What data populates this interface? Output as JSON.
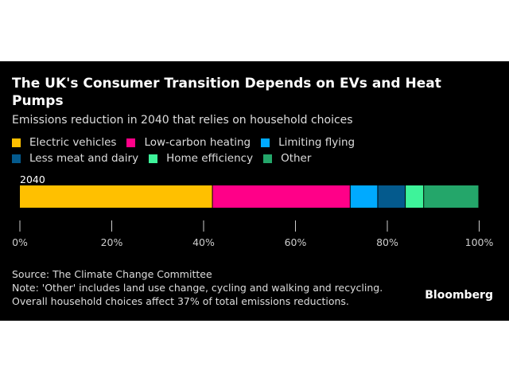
{
  "title": "The UK's Consumer Transition Depends on EVs and Heat Pumps",
  "subtitle": "Emissions reduction in 2040 that relies on household choices",
  "source": "Source: The Climate Change Committee",
  "note": "Note: 'Other' includes land use change, cycling and walking and recycling.",
  "note2": "Overall household choices affect 37% of total emissions reductions.",
  "brand": "Bloomberg",
  "chart_data": {
    "type": "bar",
    "orientation": "horizontal-stacked",
    "categories": [
      "2040"
    ],
    "series": [
      {
        "name": "Electric vehicles",
        "values": [
          42
        ],
        "color": "#FFC000"
      },
      {
        "name": "Low-carbon heating",
        "values": [
          30
        ],
        "color": "#FF0088"
      },
      {
        "name": "Limiting flying",
        "values": [
          6
        ],
        "color": "#00AAFF"
      },
      {
        "name": "Less meat and dairy",
        "values": [
          6
        ],
        "color": "#045A8D"
      },
      {
        "name": "Home efficiency",
        "values": [
          4
        ],
        "color": "#3EF39A"
      },
      {
        "name": "Other",
        "values": [
          12
        ],
        "color": "#24A66A"
      }
    ],
    "xlim": [
      0,
      100
    ],
    "xticks": [
      "0%",
      "20%",
      "40%",
      "60%",
      "80%",
      "100%"
    ],
    "legend": "top",
    "grid": false
  }
}
